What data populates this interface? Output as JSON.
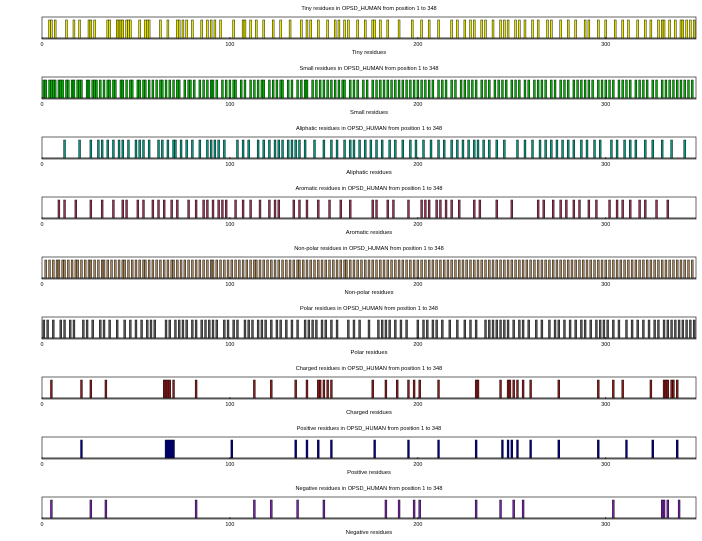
{
  "chart_data": [
    {
      "type": "bar",
      "title": "Tiny residues in OPSD_HUMAN from position 1 to 348",
      "xlabel": "Tiny residues",
      "xlim": [
        0,
        348
      ],
      "ylim": [
        0,
        1
      ],
      "xticks": [
        0,
        100,
        200,
        300
      ],
      "color": "#e5e500",
      "positions": [
        4,
        5,
        7,
        13,
        17,
        20,
        25,
        26,
        28,
        35,
        36,
        40,
        41,
        42,
        43,
        45,
        46,
        47,
        52,
        55,
        56,
        57,
        63,
        67,
        72,
        73,
        75,
        77,
        80,
        85,
        88,
        90,
        92,
        95,
        102,
        107,
        108,
        111,
        114,
        118,
        123,
        127,
        132,
        138,
        141,
        143,
        147,
        152,
        156,
        158,
        161,
        163,
        168,
        172,
        176,
        177,
        180,
        184,
        190,
        197,
        202,
        206,
        211,
        218,
        221,
        225,
        228,
        230,
        234,
        236,
        240,
        244,
        246,
        248,
        252,
        254,
        257,
        261,
        264,
        269,
        271,
        276,
        280,
        284,
        289,
        291,
        296,
        300,
        305,
        309,
        312,
        317,
        321,
        324,
        328,
        330,
        331,
        334,
        337,
        340,
        341,
        343,
        345,
        347
      ]
    },
    {
      "type": "bar",
      "title": "Small residues in OPSD_HUMAN from position 1 to 348",
      "xlabel": "Small residues",
      "xlim": [
        0,
        348
      ],
      "ylim": [
        0,
        1
      ],
      "xticks": [
        0,
        100,
        200,
        300
      ],
      "color": "#00b300",
      "positions": [
        1,
        2,
        4,
        5,
        6,
        7,
        9,
        10,
        11,
        13,
        14,
        16,
        17,
        19,
        20,
        21,
        24,
        25,
        27,
        28,
        29,
        31,
        33,
        35,
        36,
        38,
        39,
        42,
        43,
        45,
        47,
        48,
        51,
        52,
        54,
        55,
        57,
        59,
        61,
        63,
        64,
        66,
        68,
        70,
        72,
        73,
        76,
        78,
        79,
        81,
        84,
        86,
        88,
        90,
        91,
        93,
        96,
        98,
        100,
        102,
        103,
        106,
        108,
        111,
        113,
        115,
        117,
        118,
        121,
        123,
        125,
        127,
        128,
        131,
        133,
        136,
        138,
        140,
        141,
        144,
        146,
        148,
        150,
        152,
        154,
        156,
        158,
        160,
        161,
        164,
        166,
        168,
        171,
        173,
        176,
        178,
        180,
        182,
        184,
        186,
        188,
        190,
        192,
        194,
        196,
        198,
        200,
        202,
        204,
        206,
        208,
        211,
        213,
        215,
        218,
        220,
        223,
        225,
        227,
        229,
        231,
        234,
        236,
        238,
        241,
        243,
        245,
        247,
        250,
        252,
        254,
        257,
        259,
        262,
        264,
        266,
        268,
        271,
        273,
        276,
        278,
        280,
        283,
        285,
        287,
        289,
        291,
        293,
        296,
        298,
        300,
        302,
        304,
        307,
        309,
        311,
        313,
        316,
        318,
        320,
        322,
        325,
        327,
        330,
        332,
        334,
        336,
        338,
        340,
        342,
        344,
        346
      ]
    },
    {
      "type": "bar",
      "title": "Aliphatic residues in OPSD_HUMAN from position 1 to 348",
      "xlabel": "Aliphatic residues",
      "xlim": [
        0,
        348
      ],
      "ylim": [
        0,
        1
      ],
      "xticks": [
        0,
        100,
        200,
        300
      ],
      "color": "#009980",
      "positions": [
        12,
        20,
        26,
        30,
        32,
        35,
        38,
        41,
        43,
        46,
        50,
        52,
        54,
        57,
        62,
        64,
        67,
        70,
        71,
        74,
        77,
        80,
        84,
        88,
        90,
        92,
        94,
        97,
        104,
        107,
        110,
        115,
        118,
        121,
        124,
        126,
        128,
        131,
        133,
        135,
        137,
        140,
        145,
        150,
        154,
        157,
        161,
        164,
        166,
        169,
        172,
        175,
        178,
        181,
        185,
        188,
        192,
        196,
        199,
        203,
        207,
        211,
        214,
        218,
        221,
        224,
        227,
        230,
        232,
        235,
        238,
        242,
        246,
        253,
        257,
        261,
        265,
        268,
        271,
        274,
        277,
        280,
        283,
        287,
        290,
        294,
        297,
        303,
        306,
        310,
        313,
        316,
        321,
        325,
        330,
        335,
        342
      ]
    },
    {
      "type": "bar",
      "title": "Aromatic residues in OPSD_HUMAN from position 1 to 348",
      "xlabel": "Aromatic residues",
      "xlim": [
        0,
        348
      ],
      "ylim": [
        0,
        1
      ],
      "xticks": [
        0,
        100,
        200,
        300
      ],
      "color": "#993355",
      "positions": [
        9,
        12,
        18,
        26,
        32,
        38,
        43,
        45,
        51,
        54,
        59,
        62,
        65,
        69,
        72,
        78,
        82,
        86,
        88,
        91,
        94,
        96,
        98,
        103,
        107,
        111,
        116,
        121,
        124,
        126,
        134,
        137,
        141,
        147,
        153,
        159,
        164,
        176,
        178,
        184,
        187,
        195,
        202,
        204,
        206,
        210,
        212,
        215,
        218,
        222,
        230,
        233,
        242,
        250,
        264,
        267,
        272,
        276,
        279,
        283,
        286,
        291,
        295,
        302,
        306,
        309,
        313,
        318,
        321,
        327,
        333
      ]
    },
    {
      "type": "bar",
      "title": "Non-polar residues in OPSD_HUMAN from position 1 to 348",
      "xlabel": "Non-polar residues",
      "xlim": [
        0,
        348
      ],
      "ylim": [
        0,
        1
      ],
      "xticks": [
        0,
        100,
        200,
        300
      ],
      "color": "#a8865c",
      "positions": [
        2,
        4,
        6,
        8,
        9,
        11,
        12,
        14,
        16,
        18,
        19,
        21,
        23,
        25,
        26,
        28,
        30,
        32,
        33,
        35,
        37,
        39,
        41,
        43,
        44,
        46,
        48,
        50,
        52,
        54,
        55,
        57,
        59,
        61,
        63,
        65,
        67,
        69,
        70,
        72,
        74,
        76,
        78,
        80,
        82,
        84,
        86,
        88,
        90,
        91,
        93,
        95,
        97,
        99,
        101,
        103,
        105,
        107,
        109,
        111,
        113,
        114,
        116,
        118,
        120,
        122,
        124,
        126,
        128,
        130,
        132,
        134,
        136,
        137,
        139,
        141,
        143,
        145,
        147,
        149,
        151,
        153,
        155,
        157,
        159,
        161,
        162,
        164,
        166,
        168,
        170,
        172,
        174,
        176,
        178,
        180,
        182,
        184,
        186,
        188,
        190,
        192,
        194,
        196,
        198,
        200,
        202,
        204,
        206,
        208,
        210,
        212,
        214,
        216,
        218,
        220,
        222,
        224,
        226,
        228,
        230,
        232,
        234,
        236,
        238,
        240,
        242,
        244,
        246,
        248,
        250,
        252,
        254,
        256,
        258,
        260,
        262,
        264,
        266,
        268,
        270,
        272,
        274,
        276,
        278,
        280,
        282,
        284,
        286,
        288,
        290,
        292,
        294,
        296,
        298,
        300,
        302,
        304,
        306,
        308,
        310,
        312,
        314,
        316,
        318,
        320,
        322,
        324,
        326,
        328,
        330,
        332,
        334,
        336,
        338,
        340,
        342,
        344,
        346
      ]
    },
    {
      "type": "bar",
      "title": "Polar residues in OPSD_HUMAN from position 1 to 348",
      "xlabel": "Polar residues",
      "xlim": [
        0,
        348
      ],
      "ylim": [
        0,
        1
      ],
      "xticks": [
        0,
        100,
        200,
        300
      ],
      "color": "#555555",
      "positions": [
        1,
        3,
        6,
        10,
        12,
        15,
        17,
        22,
        24,
        27,
        31,
        33,
        36,
        40,
        44,
        47,
        50,
        53,
        56,
        58,
        60,
        66,
        68,
        71,
        73,
        75,
        77,
        80,
        82,
        85,
        87,
        89,
        91,
        93,
        97,
        99,
        102,
        104,
        108,
        110,
        112,
        115,
        117,
        119,
        122,
        125,
        127,
        130,
        133,
        136,
        140,
        142,
        144,
        146,
        149,
        151,
        154,
        157,
        163,
        166,
        169,
        174,
        179,
        181,
        183,
        185,
        188,
        191,
        194,
        200,
        203,
        205,
        208,
        210,
        213,
        217,
        221,
        225,
        228,
        231,
        236,
        238,
        240,
        242,
        244,
        246,
        248,
        251,
        254,
        256,
        259,
        263,
        266,
        270,
        273,
        275,
        278,
        281,
        284,
        287,
        289,
        292,
        295,
        297,
        299,
        301,
        304,
        307,
        311,
        314,
        317,
        320,
        323,
        326,
        328,
        331,
        333,
        335,
        337,
        339,
        341,
        343,
        345,
        347
      ]
    },
    {
      "type": "bar",
      "title": "Charged residues in OPSD_HUMAN from position 1 to 348",
      "xlabel": "Charged residues",
      "xlim": [
        0,
        348
      ],
      "ylim": [
        0,
        1
      ],
      "xticks": [
        0,
        100,
        200,
        300
      ],
      "color": "#8b1a1a",
      "positions": [
        5,
        21,
        26,
        34,
        65,
        66,
        67,
        68,
        70,
        82,
        113,
        122,
        135,
        141,
        147,
        148,
        150,
        152,
        154,
        176,
        183,
        189,
        195,
        198,
        201,
        211,
        231,
        232,
        244,
        248,
        249,
        251,
        253,
        256,
        260,
        275,
        296,
        304,
        309,
        324,
        331,
        332,
        333,
        335,
        336,
        338
      ]
    },
    {
      "type": "bar",
      "title": "Positive residues in OPSD_HUMAN from position 1 to 348",
      "xlabel": "Positive residues",
      "xlim": [
        0,
        348
      ],
      "ylim": [
        0,
        1
      ],
      "xticks": [
        0,
        100,
        200,
        300
      ],
      "color": "#00008b",
      "positions": [
        21,
        66,
        67,
        68,
        69,
        70,
        101,
        135,
        141,
        147,
        154,
        177,
        195,
        211,
        231,
        245,
        248,
        250,
        253,
        260,
        275,
        296,
        311,
        325,
        338
      ]
    },
    {
      "type": "bar",
      "title": "Negative residues in OPSD_HUMAN from position 1 to 348",
      "xlabel": "Negative residues",
      "xlim": [
        0,
        348
      ],
      "ylim": [
        0,
        1
      ],
      "xticks": [
        0,
        100,
        200,
        300
      ],
      "color": "#7722aa",
      "positions": [
        5,
        26,
        34,
        82,
        113,
        122,
        136,
        150,
        183,
        190,
        198,
        201,
        231,
        244,
        251,
        256,
        304,
        330,
        331,
        333,
        339
      ]
    }
  ]
}
